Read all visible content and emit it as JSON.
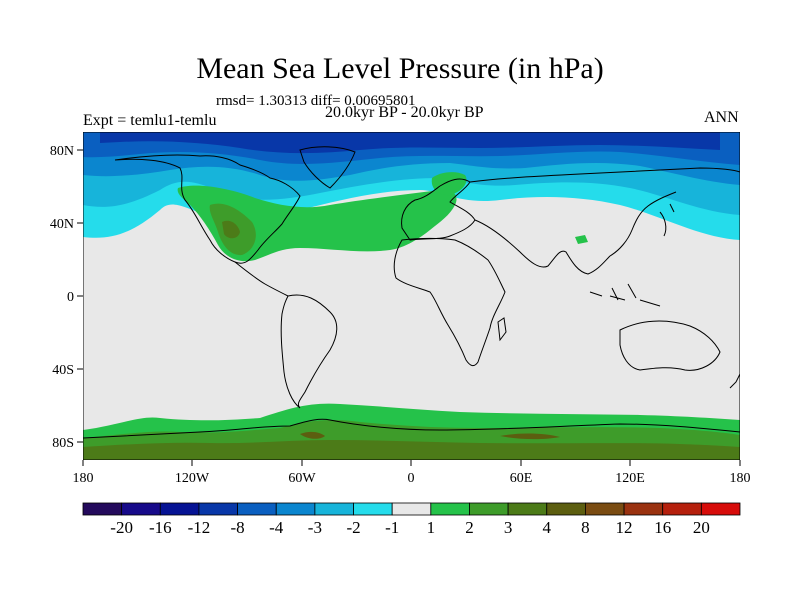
{
  "title": "Mean Sea Level Pressure (in hPa)",
  "stats": "rmsd= 1.30313 diff= 0.00695801",
  "period": "20.0kyr BP - 20.0kyr BP",
  "experiment": "Expt = temlu1-temlu",
  "season": "ANN",
  "map": {
    "projection": "equirectangular",
    "lon_range": [
      -180,
      180
    ],
    "lat_range": [
      -90,
      90
    ],
    "background_value_class": "-1 to 1",
    "x_ticks": [
      "180",
      "120W",
      "60W",
      "0",
      "60E",
      "120E",
      "180"
    ],
    "y_ticks": [
      "80N",
      "40N",
      "0",
      "40S",
      "80S"
    ]
  },
  "colorbar": {
    "labels": [
      "-20",
      "-16",
      "-12",
      "-8",
      "-4",
      "-3",
      "-2",
      "-1",
      "1",
      "2",
      "3",
      "4",
      "8",
      "12",
      "16",
      "20"
    ],
    "colors": [
      "#240a5c",
      "#170a8a",
      "#061394",
      "#0837a8",
      "#0a5fc0",
      "#0b86cf",
      "#17b4da",
      "#25dceb",
      "#e8e8e8",
      "#25c24a",
      "#3e9c2a",
      "#4c7b18",
      "#5c5e10",
      "#7a4c12",
      "#9a3210",
      "#b5200d",
      "#d70c0a"
    ]
  }
}
